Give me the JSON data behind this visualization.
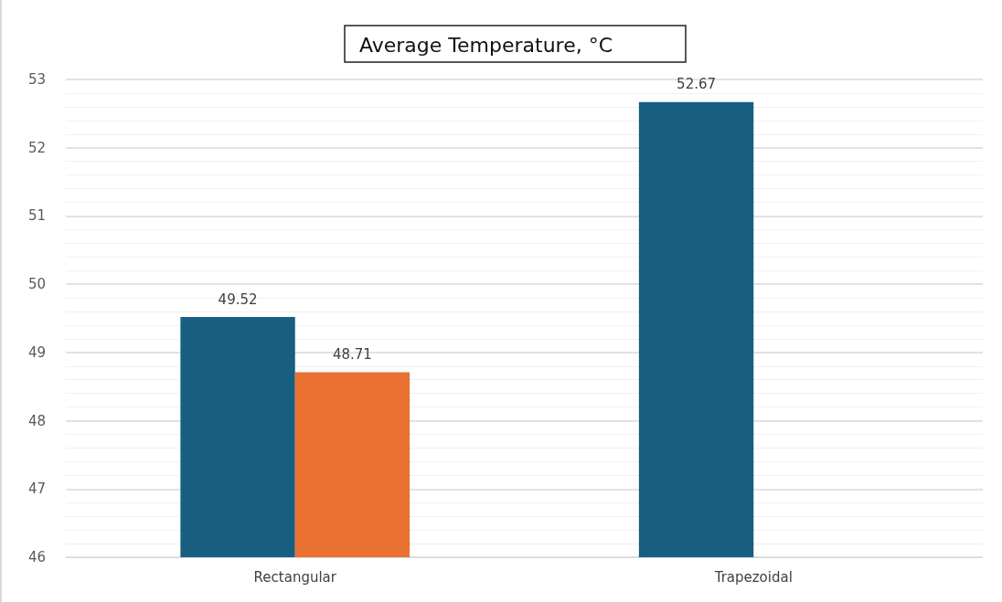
{
  "chart_data": {
    "type": "bar",
    "title": "Average Temperature, °C",
    "categories": [
      "Rectangular",
      "Trapezoidal"
    ],
    "series": [
      {
        "color": "#175e80",
        "values": [
          49.52,
          52.67
        ]
      },
      {
        "color": "#e97132",
        "values": [
          48.71,
          null
        ]
      }
    ],
    "ylim": [
      46,
      53
    ],
    "yticks": [
      46,
      47,
      48,
      49,
      50,
      51,
      52,
      53
    ],
    "grid": "y",
    "data_labels": true
  }
}
